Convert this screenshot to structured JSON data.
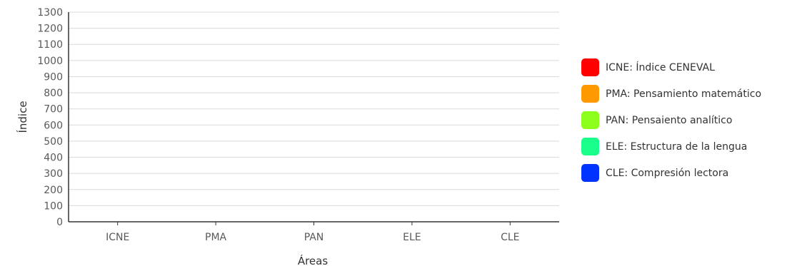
{
  "chart_data": {
    "type": "bar",
    "title": "",
    "xlabel": "Áreas",
    "ylabel": "Índice",
    "categories": [
      "ICNE",
      "PMA",
      "PAN",
      "ELE",
      "CLE"
    ],
    "ylim": [
      0,
      1300
    ],
    "yticks": [
      0,
      100,
      200,
      300,
      400,
      500,
      600,
      700,
      800,
      900,
      1000,
      1100,
      1200,
      1300
    ],
    "grid": true,
    "legend_position": "right",
    "series": [],
    "legend": [
      {
        "label": "ICNE: Índice CENEVAL",
        "color": "#ff0000"
      },
      {
        "label": "PMA: Pensamiento matemático",
        "color": "#ff9900"
      },
      {
        "label": "PAN: Pensaiento analítico",
        "color": "#8cff1a"
      },
      {
        "label": "ELE: Estructura de la lengua",
        "color": "#1aff8c"
      },
      {
        "label": "CLE: Compresión lectora",
        "color": "#0033ff"
      }
    ]
  }
}
